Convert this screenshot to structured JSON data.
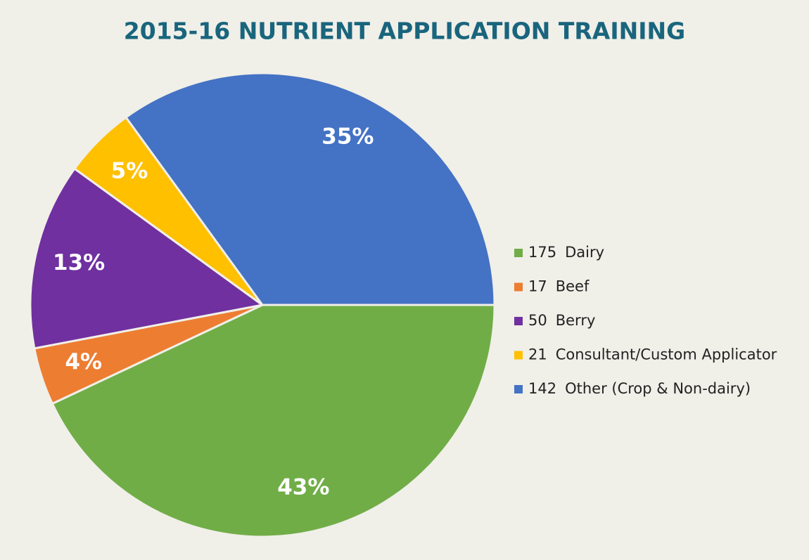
{
  "chart_data": {
    "type": "pie",
    "title": "2015-16 NUTRIENT APPLICATION TRAINING",
    "categories": [
      "Dairy",
      "Beef",
      "Berry",
      "Consultant/Custom Applicator",
      "Other (Crop & Non-dairy)"
    ],
    "values": [
      43,
      4,
      13,
      5,
      35
    ],
    "value_labels": [
      "43%",
      "4%",
      "13%",
      "5%",
      "35%"
    ],
    "counts": [
      175,
      17,
      50,
      21,
      142
    ],
    "colors": [
      "#70ad47",
      "#ed7d31",
      "#7030a0",
      "#ffc000",
      "#4472c4"
    ],
    "legend": "right"
  }
}
